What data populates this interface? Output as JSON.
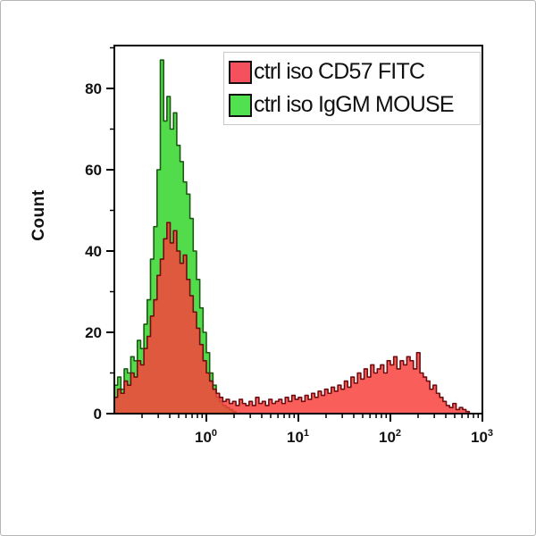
{
  "figure": {
    "background": "#ffffff",
    "frame_border_color": "#b5b5b5",
    "axis_color": "#000000"
  },
  "legend": {
    "entries": [
      {
        "label": "ctrl iso CD57 FITC",
        "color": "#f4505e"
      },
      {
        "label": "ctrl iso IgGM MOUSE",
        "color": "#50e050"
      }
    ]
  },
  "chart_data": {
    "type": "area",
    "subtype": "overlaid-flow-cytometry-histograms",
    "title": "",
    "xlabel": "",
    "ylabel": "Count",
    "x_scale": "log10",
    "x_log_range": [
      -1,
      3
    ],
    "ylim": [
      0,
      91
    ],
    "yticks": [
      0,
      20,
      40,
      60,
      80
    ],
    "y_minor_ticks": [
      10,
      30,
      50,
      70,
      90
    ],
    "xticks": [
      {
        "base": "10",
        "exp": "0",
        "log10": 0
      },
      {
        "base": "10",
        "exp": "1",
        "log10": 1
      },
      {
        "base": "10",
        "exp": "2",
        "log10": 2
      },
      {
        "base": "10",
        "exp": "3",
        "log10": 3
      }
    ],
    "x_minor_ticks_per_decade": [
      2,
      3,
      4,
      5,
      6,
      7,
      8,
      9
    ],
    "grid": false,
    "legend_position": "top-right",
    "bins": {
      "log10_start": -1,
      "log10_step": 0.0357143,
      "count": 112
    },
    "series": [
      {
        "name": "ctrl iso CD57 FITC",
        "fill": "#f93f3a",
        "fill_opacity": 0.84,
        "stroke": "#6f0d10",
        "values": [
          4,
          6,
          5,
          8,
          7,
          10,
          9,
          13,
          12,
          16,
          19,
          24,
          28,
          34,
          38,
          43,
          47,
          42,
          45,
          40,
          37,
          39,
          33,
          29,
          25,
          21,
          17,
          13,
          10,
          8,
          6,
          5,
          4,
          3,
          3.5,
          2.5,
          3,
          2,
          3.5,
          2.5,
          2,
          3,
          2,
          4,
          2.5,
          3,
          2,
          3.5,
          2.5,
          3,
          3.5,
          2.5,
          4,
          3,
          4.5,
          3.5,
          4,
          3,
          4.5,
          3.5,
          5,
          4,
          5.5,
          4.5,
          6,
          5,
          6.5,
          5.5,
          7,
          6,
          8,
          6.5,
          9,
          7.5,
          10,
          8.5,
          11,
          9,
          12,
          10,
          11,
          12,
          10,
          13,
          12,
          14,
          11,
          13,
          12,
          14,
          13,
          11,
          15,
          10,
          9,
          8,
          6,
          7,
          5,
          4,
          3,
          2,
          1.5,
          2.5,
          1,
          1.5,
          1,
          0.5,
          0,
          0,
          0,
          0
        ]
      },
      {
        "name": "ctrl iso IgGM MOUSE",
        "fill": "#52dc4b",
        "fill_opacity": 1,
        "stroke": "#1c5a12",
        "values": [
          7,
          9,
          6,
          11,
          10,
          14,
          13,
          18,
          16,
          22,
          28,
          38,
          46,
          60,
          87,
          72,
          78,
          70,
          74,
          66,
          62,
          57,
          54,
          48,
          40,
          33,
          26,
          20,
          15,
          10,
          7,
          4,
          3,
          2,
          1.5,
          1,
          0.5,
          0,
          0,
          0,
          0,
          0,
          0,
          0,
          0,
          0,
          0,
          0,
          0,
          0,
          0,
          0,
          0,
          0,
          0,
          0,
          0,
          0,
          0,
          0,
          0,
          0,
          0,
          0,
          0,
          0,
          0,
          0,
          0,
          0,
          0,
          0,
          0,
          0,
          0,
          0,
          0,
          0,
          0,
          0,
          0,
          0,
          0,
          0,
          0,
          0,
          0,
          0,
          0,
          0,
          0,
          0,
          0,
          0,
          0,
          0,
          0,
          0,
          0,
          0,
          0,
          0,
          0,
          0,
          0,
          0,
          0,
          0,
          0,
          0,
          0,
          0
        ]
      }
    ]
  }
}
